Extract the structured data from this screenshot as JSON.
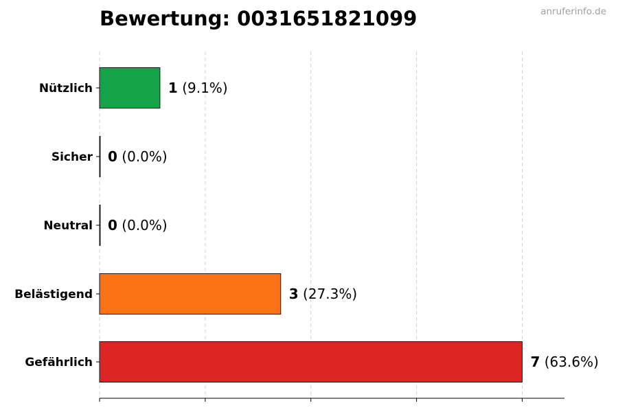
{
  "watermark": "anruferinfo.de",
  "chart_data": {
    "type": "bar",
    "orientation": "horizontal",
    "title": "Bewertung: 0031651821099",
    "categories": [
      "Nützlich",
      "Sicher",
      "Neutral",
      "Belästigend",
      "Gefährlich"
    ],
    "values": [
      1,
      0,
      0,
      3,
      7
    ],
    "value_labels": [
      "(9.1%)",
      "(0.0%)",
      "(0.0%)",
      "(27.3%)",
      "(63.6%)"
    ],
    "colors": [
      "#16a34a",
      "#6b7280",
      "#6b7280",
      "#f97316",
      "#dc2626"
    ],
    "xlim": [
      0,
      7.7
    ],
    "x_gridlines": [
      0,
      1.75,
      3.5,
      5.25,
      7
    ],
    "grid": "vertical dashed",
    "xlabel": "",
    "ylabel": ""
  }
}
